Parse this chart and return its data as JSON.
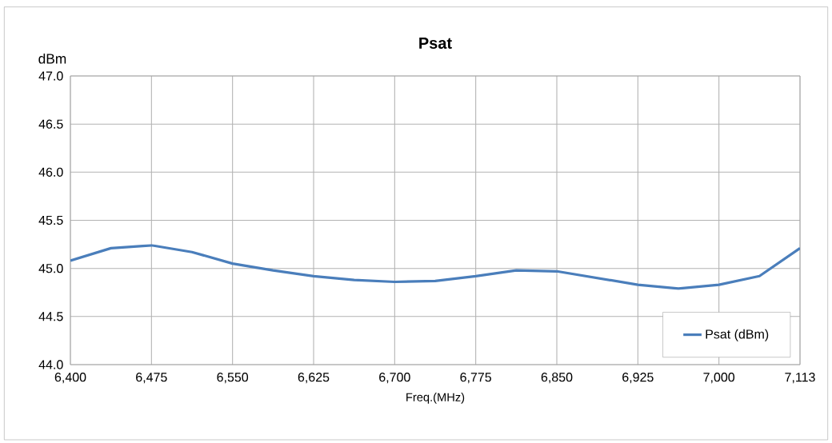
{
  "chart_data": {
    "type": "line",
    "title": "Psat",
    "ylabel": "dBm",
    "xlabel": "Freq.(MHz)",
    "categories": [
      "6,400",
      null,
      "6,475",
      null,
      "6,550",
      null,
      "6,625",
      null,
      "6,700",
      null,
      "6,775",
      null,
      "6,850",
      null,
      "6,925",
      null,
      "7,000",
      null,
      "7,113"
    ],
    "series": [
      {
        "name": "Psat (dBm)",
        "color": "#4a7ebb",
        "values": [
          45.08,
          45.21,
          45.24,
          45.17,
          45.05,
          44.98,
          44.92,
          44.88,
          44.86,
          44.87,
          44.92,
          44.98,
          44.97,
          44.9,
          44.83,
          44.79,
          44.83,
          44.92,
          45.21
        ]
      }
    ],
    "ylim": [
      44,
      47
    ],
    "yticks": [
      {
        "value": 44,
        "label": "44.0"
      },
      {
        "value": 44.5,
        "label": "44.5"
      },
      {
        "value": 45,
        "label": "45.0"
      },
      {
        "value": 45.5,
        "label": "45.5"
      },
      {
        "value": 46,
        "label": "46.0"
      },
      {
        "value": 46.5,
        "label": "46.5"
      },
      {
        "value": 47,
        "label": "47.0"
      }
    ],
    "grid": true,
    "legend": "bottom right",
    "marker": "none",
    "line_style": "solid"
  }
}
